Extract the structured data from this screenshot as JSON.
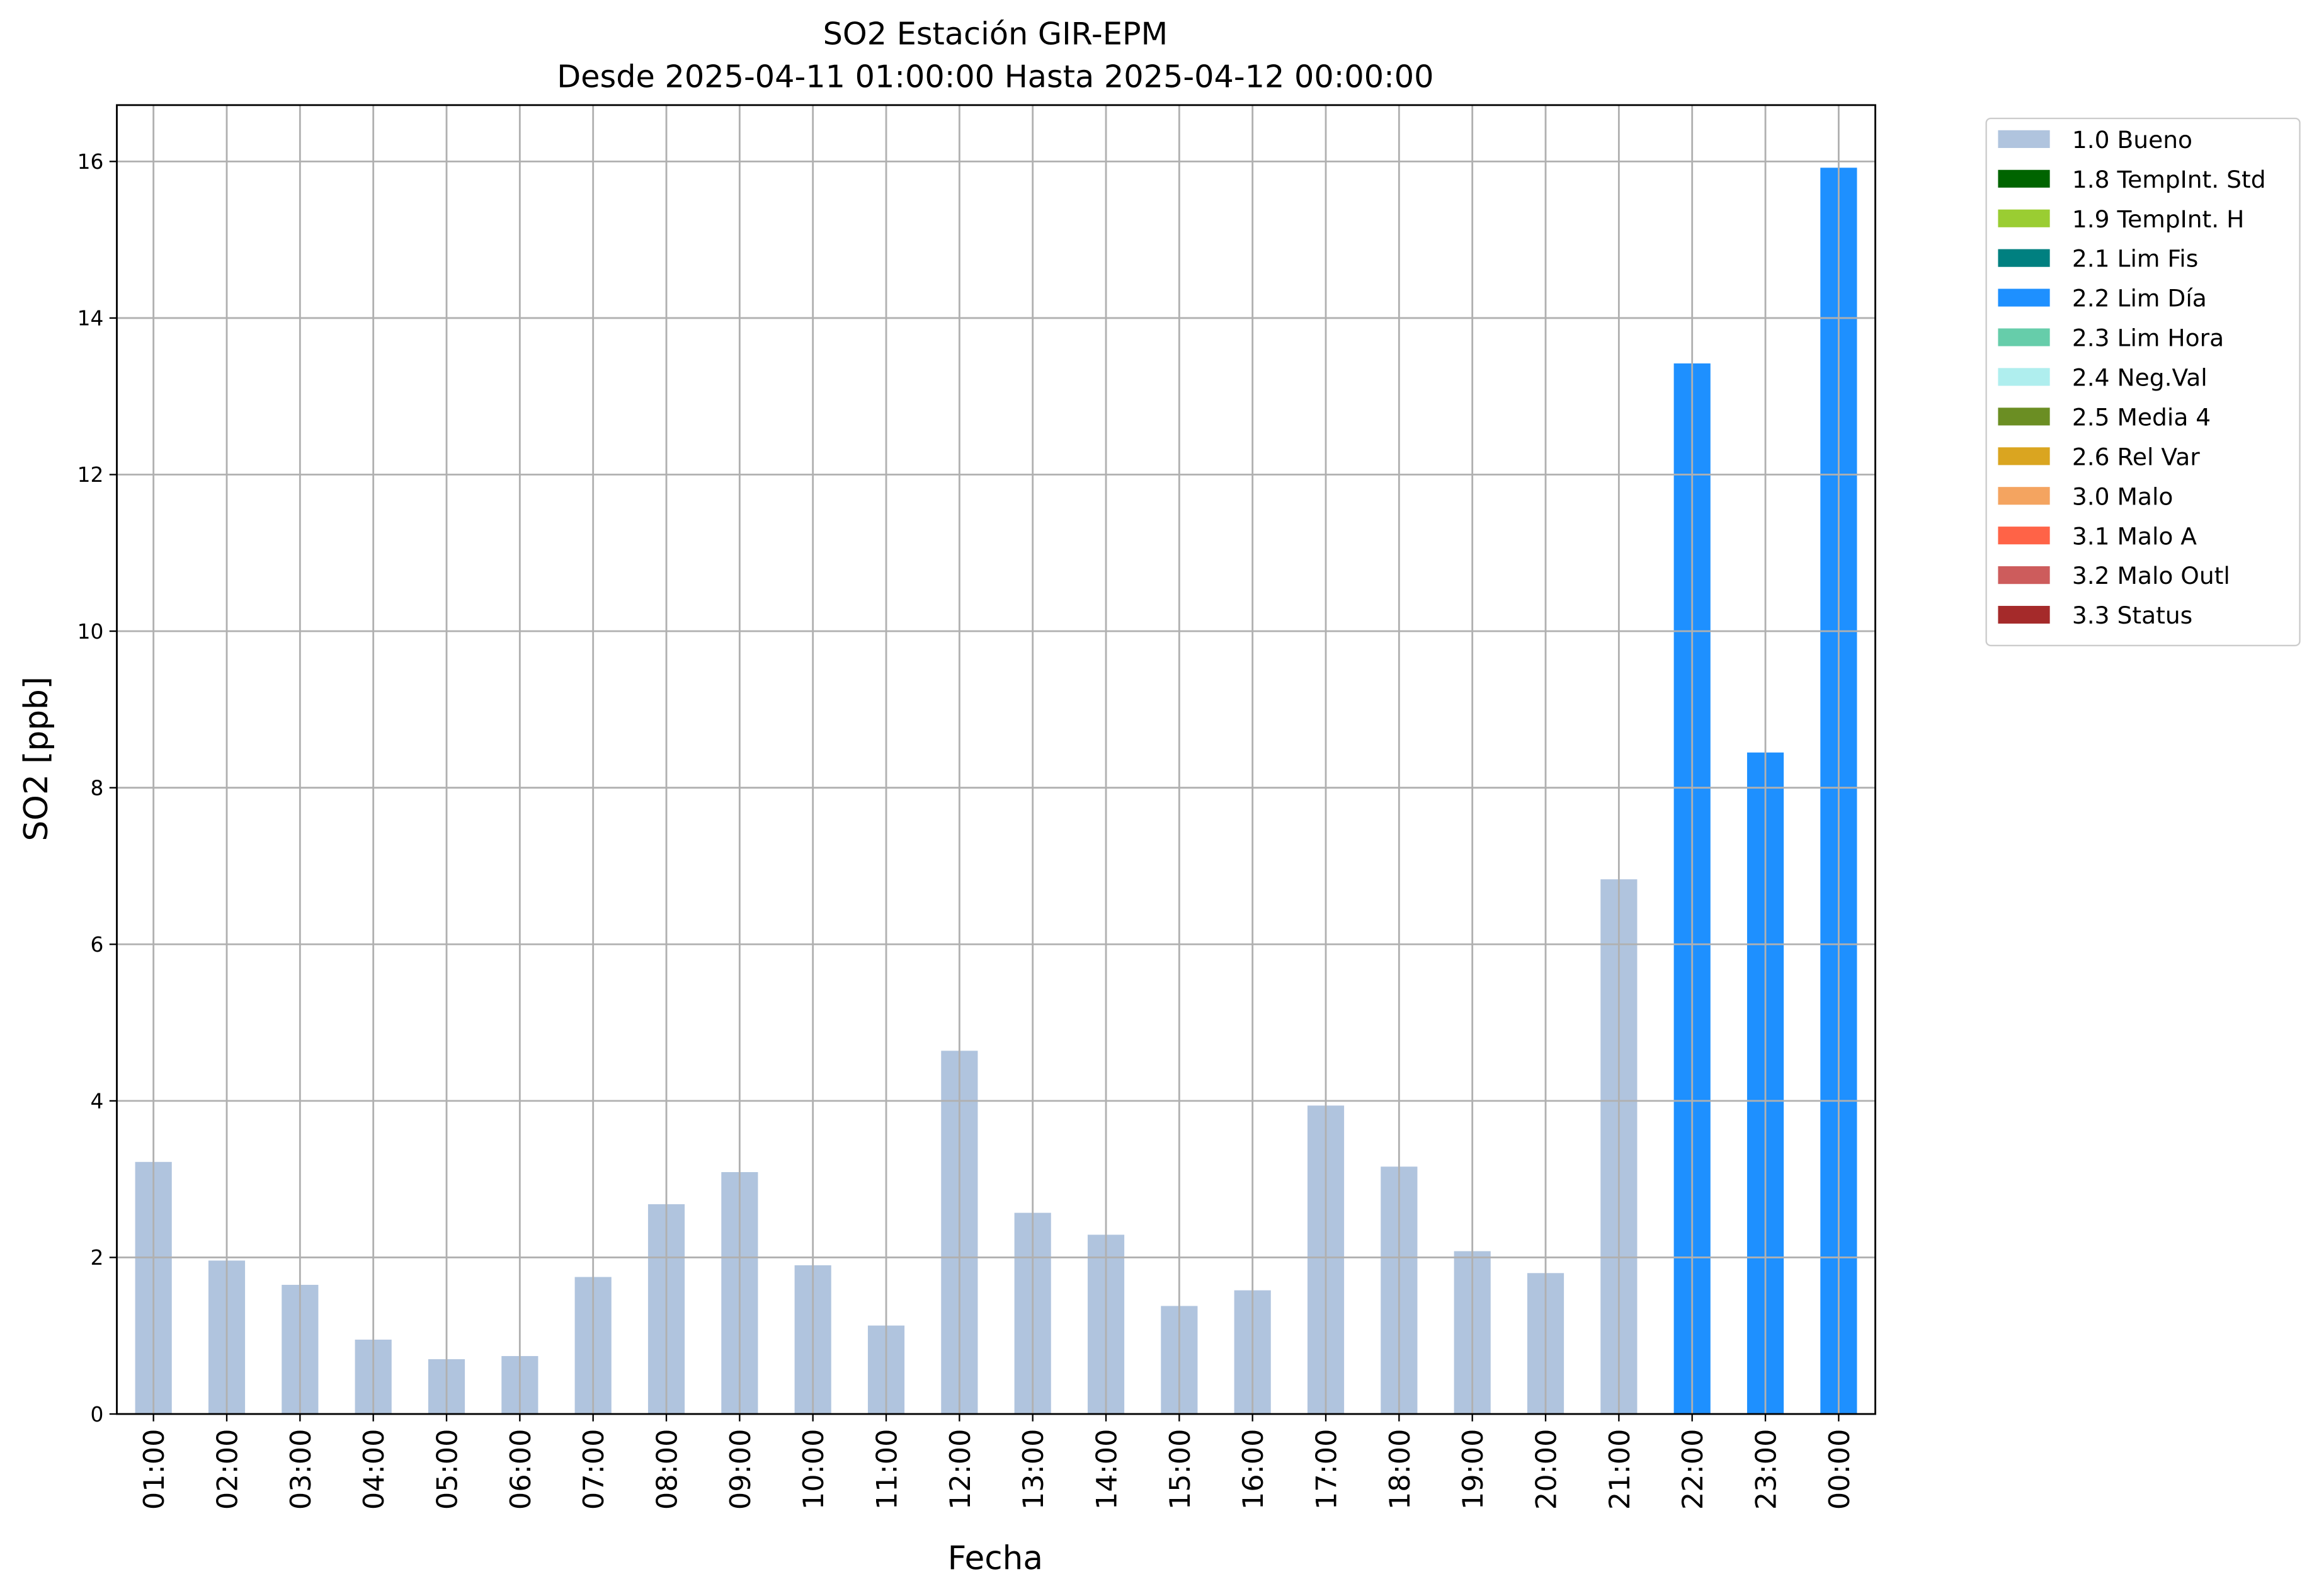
{
  "chart_data": {
    "type": "bar",
    "title": "SO2 Estación GIR-EPM",
    "subtitle": "Desde 2025-04-11 01:00:00 Hasta 2025-04-12 00:00:00",
    "x_label": "Fecha",
    "y_label": "SO2 [ppb]",
    "categories": [
      "01:00",
      "02:00",
      "03:00",
      "04:00",
      "05:00",
      "06:00",
      "07:00",
      "08:00",
      "09:00",
      "10:00",
      "11:00",
      "12:00",
      "13:00",
      "14:00",
      "15:00",
      "16:00",
      "17:00",
      "18:00",
      "19:00",
      "20:00",
      "21:00",
      "22:00",
      "23:00",
      "00:00"
    ],
    "values": [
      3.22,
      1.96,
      1.65,
      0.95,
      0.7,
      0.74,
      1.75,
      2.68,
      3.09,
      1.9,
      1.13,
      4.64,
      2.57,
      2.29,
      1.38,
      1.58,
      3.94,
      3.16,
      2.08,
      1.8,
      6.83,
      13.42,
      8.45,
      15.92
    ],
    "bar_colors": [
      "#b0c4de",
      "#b0c4de",
      "#b0c4de",
      "#b0c4de",
      "#b0c4de",
      "#b0c4de",
      "#b0c4de",
      "#b0c4de",
      "#b0c4de",
      "#b0c4de",
      "#b0c4de",
      "#b0c4de",
      "#b0c4de",
      "#b0c4de",
      "#b0c4de",
      "#b0c4de",
      "#b0c4de",
      "#b0c4de",
      "#b0c4de",
      "#b0c4de",
      "#b0c4de",
      "#1e90ff",
      "#1e90ff",
      "#1e90ff"
    ],
    "ylim": [
      0,
      16.72
    ],
    "yticks": [
      0,
      2,
      4,
      6,
      8,
      10,
      12,
      14,
      16
    ],
    "grid": true,
    "legend_position": "outside-upper-right",
    "legend": [
      {
        "name": "1.0 Bueno",
        "color": "#b0c4de"
      },
      {
        "name": "1.8 TempInt. Std",
        "color": "#006400"
      },
      {
        "name": "1.9 TempInt. H",
        "color": "#9acd32"
      },
      {
        "name": "2.1 Lim Fis",
        "color": "#008080"
      },
      {
        "name": "2.2 Lim Día",
        "color": "#1e90ff"
      },
      {
        "name": "2.3 Lim Hora",
        "color": "#66cdaa"
      },
      {
        "name": "2.4 Neg.Val",
        "color": "#afeeee"
      },
      {
        "name": "2.5 Media 4",
        "color": "#6b8e23"
      },
      {
        "name": "2.6 Rel Var",
        "color": "#daa520"
      },
      {
        "name": "3.0 Malo",
        "color": "#f4a460"
      },
      {
        "name": "3.1 Malo A",
        "color": "#ff6347"
      },
      {
        "name": "3.2 Malo Outl",
        "color": "#cd5c5c"
      },
      {
        "name": "3.3 Status",
        "color": "#a52a2a"
      }
    ]
  }
}
